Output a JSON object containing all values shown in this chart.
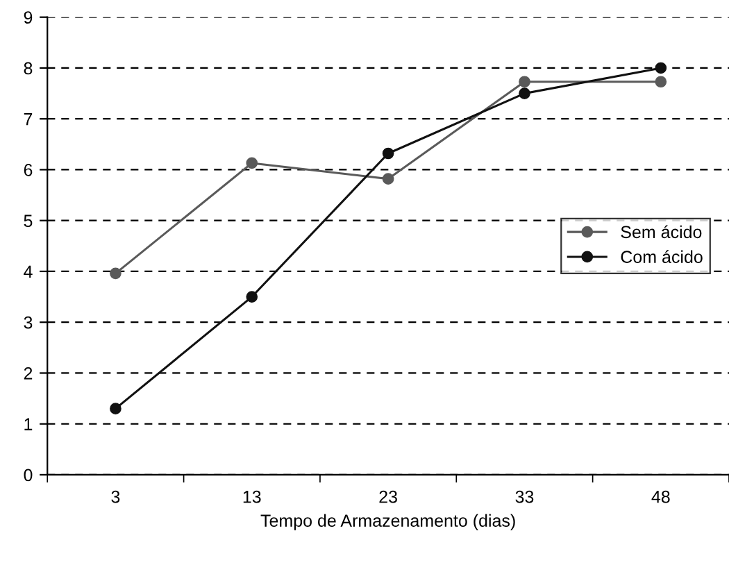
{
  "chart_data": {
    "type": "line",
    "xlabel": "Tempo de Armazenamento (dias)",
    "categories": [
      "3",
      "13",
      "23",
      "33",
      "48"
    ],
    "series": [
      {
        "name": "Sem ácido",
        "color": "#5a5a5a",
        "values": [
          3.96,
          6.13,
          5.82,
          7.73,
          7.73
        ]
      },
      {
        "name": "Com ácido",
        "color": "#111111",
        "values": [
          1.3,
          3.5,
          6.32,
          7.5,
          8.0
        ]
      }
    ],
    "ylim": [
      0,
      9
    ],
    "yticks": [
      0,
      1,
      2,
      3,
      4,
      5,
      6,
      7,
      8,
      9
    ],
    "grid": "y",
    "legend": "right",
    "marker": "circle",
    "line_style": "solid"
  }
}
